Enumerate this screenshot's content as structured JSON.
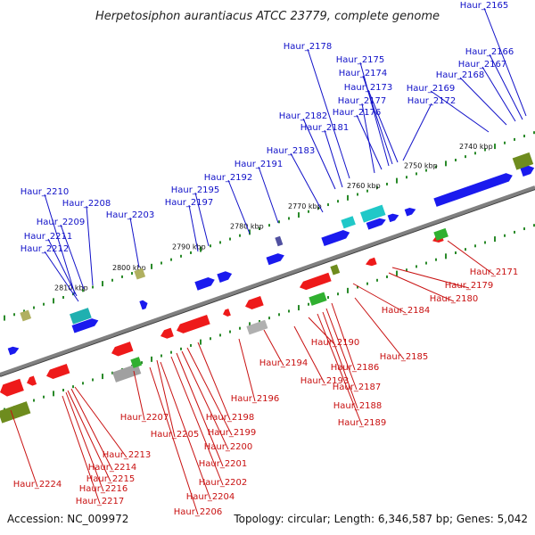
{
  "title": "Herpetosiphon aurantiacus ATCC 23779, complete genome",
  "footer": {
    "accession": "Accession: NC_009972",
    "summary": "Topology: circular; Length: 6,346,587 bp; Genes: 5,042"
  },
  "colors": {
    "forward": "#1a1aee",
    "reverse": "#ee1a1a",
    "axis": "#808080",
    "tick": "#2a8a2a",
    "label_top": "#1010c8",
    "label_bottom": "#c81010"
  },
  "scale_labels": [
    "2740 kbp",
    "2750 kbp",
    "2760 kbp",
    "2770 kbp",
    "2780 kbp",
    "2790 kbp",
    "2800 kbp",
    "2810 kbp"
  ],
  "top_labels": [
    "Haur_2165",
    "Haur_2166",
    "Haur_2167",
    "Haur_2168",
    "Haur_2169",
    "Haur_2172",
    "Haur_2173",
    "Haur_2174",
    "Haur_2175",
    "Haur_2176",
    "Haur_2177",
    "Haur_2178",
    "Haur_2181",
    "Haur_2182",
    "Haur_2183",
    "Haur_2191",
    "Haur_2192",
    "Haur_2195",
    "Haur_2197",
    "Haur_2203",
    "Haur_2208",
    "Haur_2209",
    "Haur_2210",
    "Haur_2211",
    "Haur_2212"
  ],
  "bottom_labels": [
    "Haur_2171",
    "Haur_2179",
    "Haur_2180",
    "Haur_2184",
    "Haur_2185",
    "Haur_2186",
    "Haur_2187",
    "Haur_2188",
    "Haur_2189",
    "Haur_2190",
    "Haur_2193",
    "Haur_2194",
    "Haur_2196",
    "Haur_2198",
    "Haur_2199",
    "Haur_2200",
    "Haur_2201",
    "Haur_2202",
    "Haur_2204",
    "Haur_2205",
    "Haur_2206",
    "Haur_2207",
    "Haur_2213",
    "Haur_2214",
    "Haur_2215",
    "Haur_2216",
    "Haur_2217",
    "Haur_2224"
  ]
}
